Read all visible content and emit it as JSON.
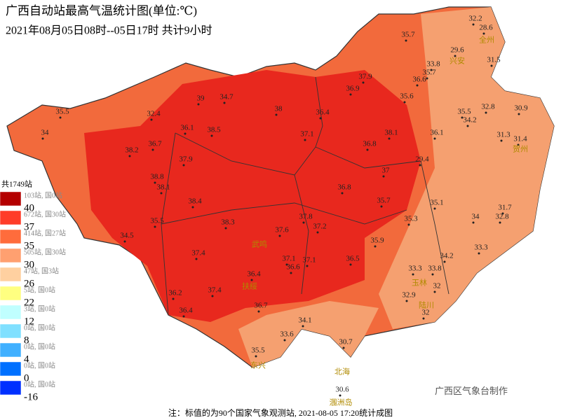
{
  "header": {
    "title": "广西自动站最高气温统计图(单位:℃)",
    "subtitle": "2021年08月05日08时--05日17时  共计9小时"
  },
  "legend": {
    "total": "共1749站",
    "bins": [
      40,
      37,
      35,
      30,
      26,
      22,
      12,
      8,
      4,
      0,
      -16
    ],
    "classes": [
      {
        "color": "#b40000",
        "count": "103站, 国0站"
      },
      {
        "color": "#ff3c28",
        "count": "672站, 国30站"
      },
      {
        "color": "#ff6c3c",
        "count": "414站, 国27站"
      },
      {
        "color": "#ffa070",
        "count": "505站, 国30站"
      },
      {
        "color": "#ffd0a0",
        "count": "47站, 国3站"
      },
      {
        "color": "#ffff80",
        "count": "5站, 国0站"
      },
      {
        "color": "#c0ffff",
        "count": "3站, 国0站"
      },
      {
        "color": "#80e0ff",
        "count": "0站, 国0站"
      },
      {
        "color": "#40b0ff",
        "count": "0站, 国0站"
      },
      {
        "color": "#0070ff",
        "count": "0站, 国0站"
      },
      {
        "color": "#0030ff",
        "count": "0站, 国0站"
      }
    ]
  },
  "stations": [
    32.2,
    28.6,
    35.7,
    29.6,
    33.8,
    35.7,
    31.5,
    37.9,
    36.9,
    36.6,
    35.6,
    39,
    34.7,
    38,
    36.4,
    35.5,
    32.4,
    35.5,
    32.8,
    30.9,
    34,
    36.1,
    38.5,
    37.1,
    38.1,
    34.2,
    36.1,
    31.3,
    31.4,
    36.7,
    36.8,
    38.2,
    37.9,
    29.4,
    37,
    38.8,
    38.1,
    36.8,
    35.7,
    35.1,
    31.7,
    38.4,
    34,
    32.8,
    35.5,
    38.3,
    37.8,
    35.3,
    34.5,
    37.6,
    37.2,
    35.9,
    33.3,
    37.4,
    37.1,
    37.1,
    36.5,
    34.2,
    36.6,
    33.3,
    33.8,
    36.4,
    32,
    36.2,
    37.4,
    32.9,
    36.4,
    36.7,
    32,
    34.1,
    33.6,
    30.7,
    35.5,
    30.6
  ],
  "places": [
    "全州",
    "兴安",
    "贺州",
    "玉林",
    "陆川",
    "武鸣",
    "扶绥",
    "东兴",
    "北海",
    "涠洲岛"
  ],
  "credit": "广西区气象台制作",
  "footer": "注：标值的为90个国家气象观测站, 2021-08-05 17:20统计成图"
}
